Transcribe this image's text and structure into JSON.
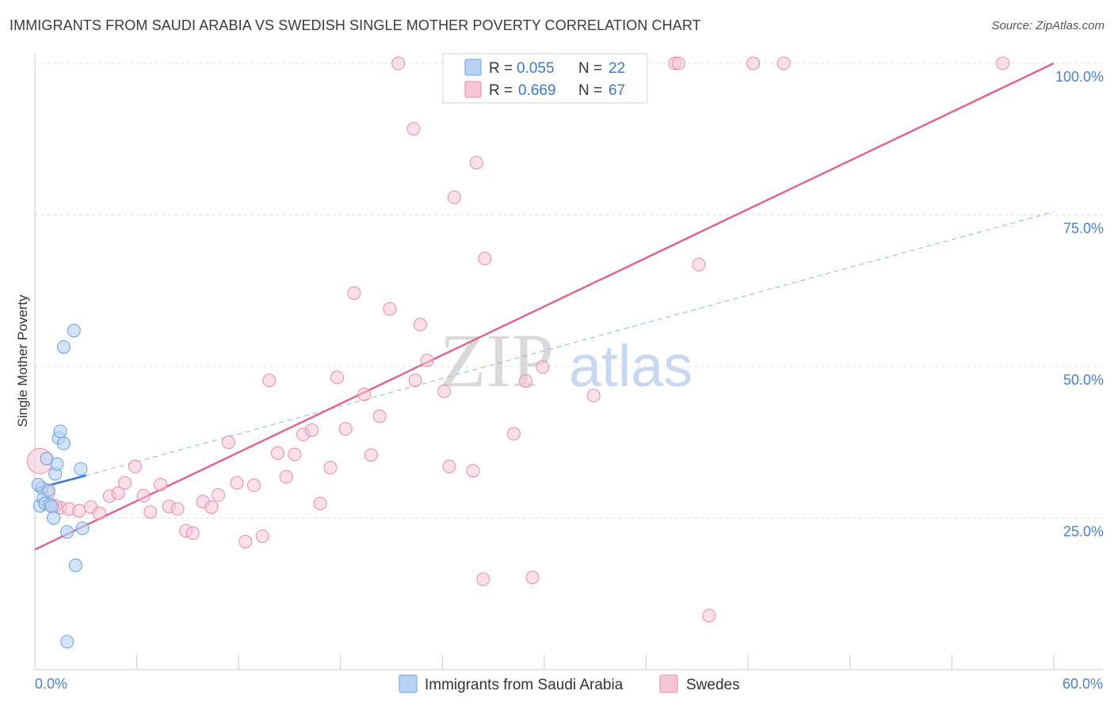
{
  "title": "IMMIGRANTS FROM SAUDI ARABIA VS SWEDISH SINGLE MOTHER POVERTY CORRELATION CHART",
  "source": "Source: ZipAtlas.com",
  "watermark": {
    "part1": "ZIP",
    "part2": "atlas"
  },
  "legend": {
    "r_label": "R =",
    "n_label": "N =",
    "rows": [
      {
        "r": "0.055",
        "n": "22",
        "color": "#a8c8f0"
      },
      {
        "r": "0.669",
        "n": "67",
        "color": "#f5b8cc"
      }
    ]
  },
  "bottom_legend": [
    {
      "label": "Immigrants from Saudi Arabia",
      "color": "#a8c8f0"
    },
    {
      "label": "Swedes",
      "color": "#f5b8cc"
    }
  ],
  "colors": {
    "blue_point": "#6a9fe0",
    "blue_fill": "#b8d2f3",
    "pink_point": "#e88aa8",
    "pink_fill": "#f7c6d5",
    "pink_line": "#e0668f",
    "blue_line": "#3a78d4",
    "tick_text": "#4a7fd4",
    "grid": "#dddddd"
  },
  "chart_data": {
    "type": "scatter",
    "title": "IMMIGRANTS FROM SAUDI ARABIA VS SWEDISH SINGLE MOTHER POVERTY CORRELATION CHART",
    "xlabel": "",
    "ylabel": "Single Mother Poverty",
    "xlim": [
      0,
      60
    ],
    "ylim": [
      0,
      100
    ],
    "x_tick_labels": [
      "0.0%",
      "60.0%"
    ],
    "y_ticks": [
      25,
      50,
      75,
      100
    ],
    "y_tick_labels": [
      "25.0%",
      "50.0%",
      "75.0%",
      "100.0%"
    ],
    "grid": true,
    "legend_position": "top-center",
    "series": [
      {
        "name": "Immigrants from Saudi Arabia",
        "r": 0.055,
        "n": 22,
        "trend": {
          "x0": 0,
          "y0": 29.8,
          "x1": 3,
          "y1": 32.0
        },
        "trend_extension": {
          "x0": 3,
          "y0": 32.0,
          "x1": 60,
          "y1": 75.5
        },
        "points": [
          [
            0.3,
            27.0
          ],
          [
            0.4,
            30.0
          ],
          [
            0.5,
            28.2
          ],
          [
            0.6,
            27.4
          ],
          [
            0.7,
            34.8
          ],
          [
            0.8,
            29.6
          ],
          [
            0.9,
            27.2
          ],
          [
            1.0,
            26.9
          ],
          [
            1.1,
            25.0
          ],
          [
            1.2,
            32.3
          ],
          [
            1.3,
            33.9
          ],
          [
            1.4,
            38.2
          ],
          [
            1.5,
            39.3
          ],
          [
            1.7,
            37.3
          ],
          [
            1.7,
            53.2
          ],
          [
            1.9,
            22.7
          ],
          [
            2.3,
            55.9
          ],
          [
            2.4,
            17.2
          ],
          [
            2.7,
            33.1
          ],
          [
            2.8,
            23.3
          ],
          [
            1.9,
            4.6
          ],
          [
            0.2,
            30.5
          ]
        ]
      },
      {
        "name": "Swedes",
        "r": 0.669,
        "n": 67,
        "trend": {
          "x0": 0,
          "y0": 19.8,
          "x1": 60,
          "y1": 100.0
        },
        "points": [
          [
            0.3,
            34.4
          ],
          [
            0.8,
            29.2
          ],
          [
            1.5,
            26.7
          ],
          [
            2.0,
            26.5
          ],
          [
            2.6,
            26.2
          ],
          [
            3.3,
            26.8
          ],
          [
            3.8,
            25.8
          ],
          [
            4.4,
            28.6
          ],
          [
            4.9,
            29.1
          ],
          [
            5.3,
            30.8
          ],
          [
            5.9,
            33.5
          ],
          [
            6.4,
            28.7
          ],
          [
            6.8,
            26.0
          ],
          [
            7.4,
            30.5
          ],
          [
            7.9,
            26.9
          ],
          [
            8.4,
            26.5
          ],
          [
            8.9,
            22.9
          ],
          [
            9.3,
            22.5
          ],
          [
            9.9,
            27.7
          ],
          [
            10.4,
            26.8
          ],
          [
            10.8,
            28.8
          ],
          [
            11.4,
            37.5
          ],
          [
            11.9,
            30.8
          ],
          [
            12.4,
            21.1
          ],
          [
            12.9,
            30.4
          ],
          [
            13.4,
            22.0
          ],
          [
            13.8,
            47.7
          ],
          [
            14.3,
            35.7
          ],
          [
            14.8,
            31.8
          ],
          [
            15.3,
            35.5
          ],
          [
            15.8,
            38.8
          ],
          [
            16.3,
            39.5
          ],
          [
            16.8,
            27.4
          ],
          [
            17.4,
            33.3
          ],
          [
            17.8,
            48.2
          ],
          [
            18.3,
            39.7
          ],
          [
            18.8,
            62.1
          ],
          [
            19.4,
            45.4
          ],
          [
            19.8,
            35.4
          ],
          [
            20.3,
            41.8
          ],
          [
            20.9,
            59.5
          ],
          [
            21.4,
            100.0
          ],
          [
            22.4,
            47.7
          ],
          [
            22.7,
            56.9
          ],
          [
            22.3,
            89.2
          ],
          [
            23.1,
            51.0
          ],
          [
            24.1,
            45.9
          ],
          [
            24.4,
            33.5
          ],
          [
            24.7,
            77.9
          ],
          [
            25.8,
            32.8
          ],
          [
            26.0,
            83.6
          ],
          [
            26.5,
            67.8
          ],
          [
            26.4,
            14.9
          ],
          [
            28.2,
            38.9
          ],
          [
            28.9,
            47.6
          ],
          [
            29.3,
            15.2
          ],
          [
            29.9,
            49.9
          ],
          [
            32.0,
            100.0
          ],
          [
            32.9,
            45.2
          ],
          [
            37.7,
            100.0
          ],
          [
            37.9,
            100.0
          ],
          [
            39.1,
            66.8
          ],
          [
            39.7,
            8.9
          ],
          [
            42.3,
            100.0
          ],
          [
            44.1,
            100.0
          ],
          [
            57.0,
            100.0
          ],
          [
            1.2,
            27.0
          ]
        ]
      }
    ]
  }
}
